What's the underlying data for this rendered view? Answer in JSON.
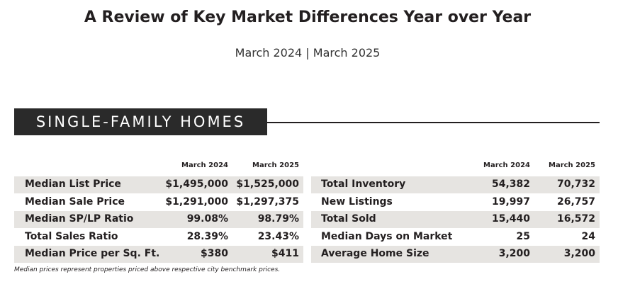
{
  "title": "A Review of Key Market Differences Year over Year",
  "subtitle": "March 2024 | March 2025",
  "section": "SINGLE-FAMILY HOMES",
  "colors": {
    "banner": "#2a2a2a",
    "row_shade": "#e6e4e1"
  },
  "left_table": {
    "headers": [
      "March 2024",
      "March 2025"
    ],
    "rows": [
      {
        "label": "Median List Price",
        "v2024": "$1,495,000",
        "v2025": "$1,525,000"
      },
      {
        "label": "Median Sale Price",
        "v2024": "$1,291,000",
        "v2025": "$1,297,375"
      },
      {
        "label": "Median SP/LP Ratio",
        "v2024": "99.08%",
        "v2025": "98.79%"
      },
      {
        "label": "Total Sales Ratio",
        "v2024": "28.39%",
        "v2025": "23.43%"
      },
      {
        "label": "Median Price per Sq. Ft.",
        "v2024": "$380",
        "v2025": "$411"
      }
    ]
  },
  "right_table": {
    "headers": [
      "March 2024",
      "March 2025"
    ],
    "rows": [
      {
        "label": "Total Inventory",
        "v2024": "54,382",
        "v2025": "70,732"
      },
      {
        "label": "New Listings",
        "v2024": "19,997",
        "v2025": "26,757"
      },
      {
        "label": "Total Sold",
        "v2024": "15,440",
        "v2025": "16,572"
      },
      {
        "label": "Median Days on Market",
        "v2024": "25",
        "v2025": "24"
      },
      {
        "label": "Average Home Size",
        "v2024": "3,200",
        "v2025": "3,200"
      }
    ]
  },
  "footnote": "Median prices represent properties priced above respective city benchmark prices."
}
